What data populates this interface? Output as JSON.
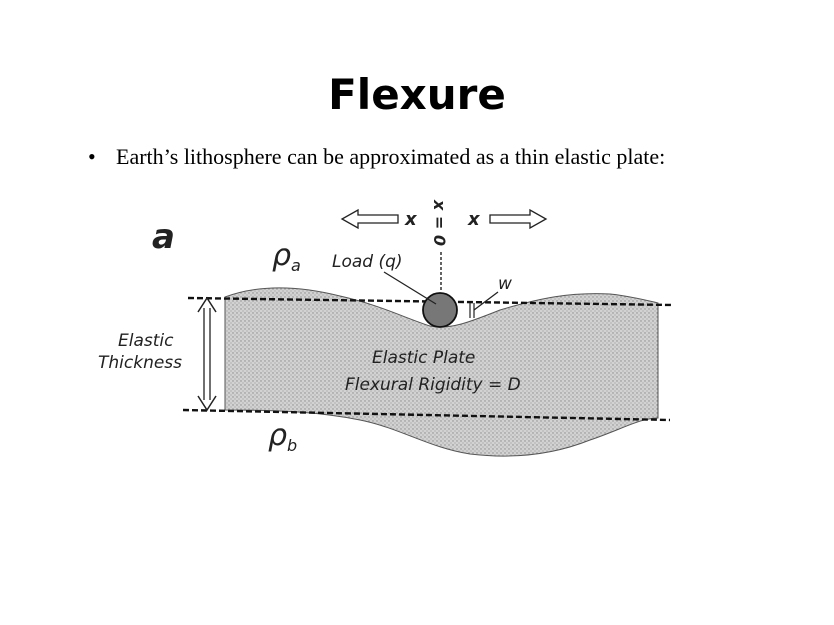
{
  "slide": {
    "title": "Flexure",
    "bullet": "Earth’s lithosphere can be approximated as a thin elastic plate:"
  },
  "diagram": {
    "panel_label": "a",
    "rho_a": "ρ",
    "rho_a_sub": "a",
    "rho_b": "ρ",
    "rho_b_sub": "b",
    "load_label": "Load (q)",
    "x_left": "x",
    "x_right": "x",
    "x_zero": "x = 0",
    "w_label": "w",
    "elastic_thickness_line1": "Elastic",
    "elastic_thickness_line2": "Thickness",
    "plate_line1": "Elastic Plate",
    "plate_line2": "Flexural Rigidity = D"
  }
}
